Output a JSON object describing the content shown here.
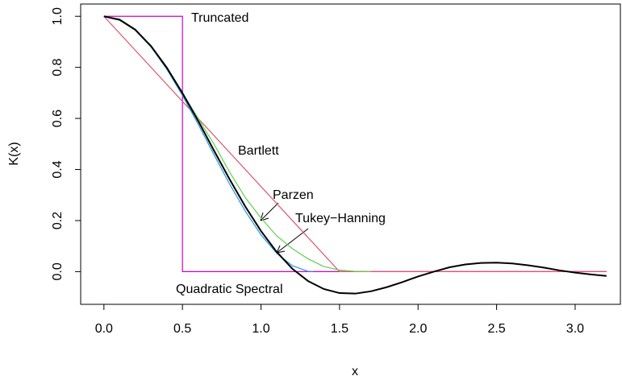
{
  "chart_data": {
    "type": "line",
    "xlabel": "x",
    "ylabel": "K(x)",
    "xlim": [
      -0.148,
      3.288
    ],
    "ylim": [
      -0.128,
      1.048
    ],
    "xticks": [
      {
        "value": 0,
        "label": "0.0"
      },
      {
        "value": 0.5,
        "label": "0.5"
      },
      {
        "value": 1,
        "label": "1.0"
      },
      {
        "value": 1.5,
        "label": "1.5"
      },
      {
        "value": 2,
        "label": "2.0"
      },
      {
        "value": 2.5,
        "label": "2.5"
      },
      {
        "value": 3,
        "label": "3.0"
      }
    ],
    "yticks": [
      {
        "value": 0,
        "label": "0.0"
      },
      {
        "value": 0.2,
        "label": "0.2"
      },
      {
        "value": 0.4,
        "label": "0.4"
      },
      {
        "value": 0.6,
        "label": "0.6"
      },
      {
        "value": 0.8,
        "label": "0.8"
      },
      {
        "value": 1,
        "label": "1.0"
      }
    ],
    "grid": false,
    "series": [
      {
        "name": "Truncated",
        "color": "#cc00cc",
        "x": [
          0,
          0.5,
          0.5,
          3.2
        ],
        "values": [
          1,
          1,
          0,
          0
        ]
      },
      {
        "name": "Bartlett",
        "color": "#df536b",
        "x": [
          0,
          1.5,
          3.2
        ],
        "values": [
          1,
          0,
          0
        ]
      },
      {
        "name": "Parzen",
        "color": "#61d04f",
        "x": [
          0,
          0.1,
          0.2,
          0.3,
          0.4,
          0.5,
          0.55,
          0.6,
          0.7,
          0.8,
          0.9,
          1.0,
          1.1,
          1.2,
          1.3,
          1.4,
          1.5,
          1.6,
          1.7
        ],
        "values": [
          1,
          0.99,
          0.95,
          0.88,
          0.8,
          0.7,
          0.65,
          0.6,
          0.5,
          0.39,
          0.29,
          0.21,
          0.14,
          0.09,
          0.05,
          0.02,
          0.006,
          0.001,
          0
        ]
      },
      {
        "name": "Tukey−Hanning",
        "color": "#2297e6",
        "x": [
          0,
          0.1,
          0.2,
          0.3,
          0.4,
          0.5,
          0.6,
          0.7,
          0.8,
          0.9,
          1.0,
          1.1,
          1.2,
          1.3,
          1.33
        ],
        "values": [
          1,
          0.986,
          0.945,
          0.88,
          0.793,
          0.69,
          0.577,
          0.459,
          0.343,
          0.237,
          0.144,
          0.072,
          0.023,
          0.001,
          0
        ]
      },
      {
        "name": "Quadratic Spectral",
        "color": "#000000",
        "x": [
          0,
          0.1,
          0.2,
          0.3,
          0.4,
          0.5,
          0.6,
          0.7,
          0.8,
          0.9,
          1.0,
          1.1,
          1.2,
          1.3,
          1.4,
          1.5,
          1.6,
          1.7,
          1.8,
          1.9,
          2.0,
          2.1,
          2.2,
          2.3,
          2.4,
          2.5,
          2.6,
          2.7,
          2.8,
          2.9,
          3.0,
          3.1,
          3.2
        ],
        "values": [
          1,
          0.986,
          0.947,
          0.883,
          0.799,
          0.699,
          0.59,
          0.475,
          0.362,
          0.255,
          0.159,
          0.077,
          0.011,
          -0.037,
          -0.068,
          -0.084,
          -0.086,
          -0.077,
          -0.061,
          -0.041,
          -0.019,
          0,
          0.017,
          0.028,
          0.034,
          0.035,
          0.032,
          0.025,
          0.016,
          0.005,
          -0.004,
          -0.011,
          -0.017
        ]
      }
    ]
  }
}
